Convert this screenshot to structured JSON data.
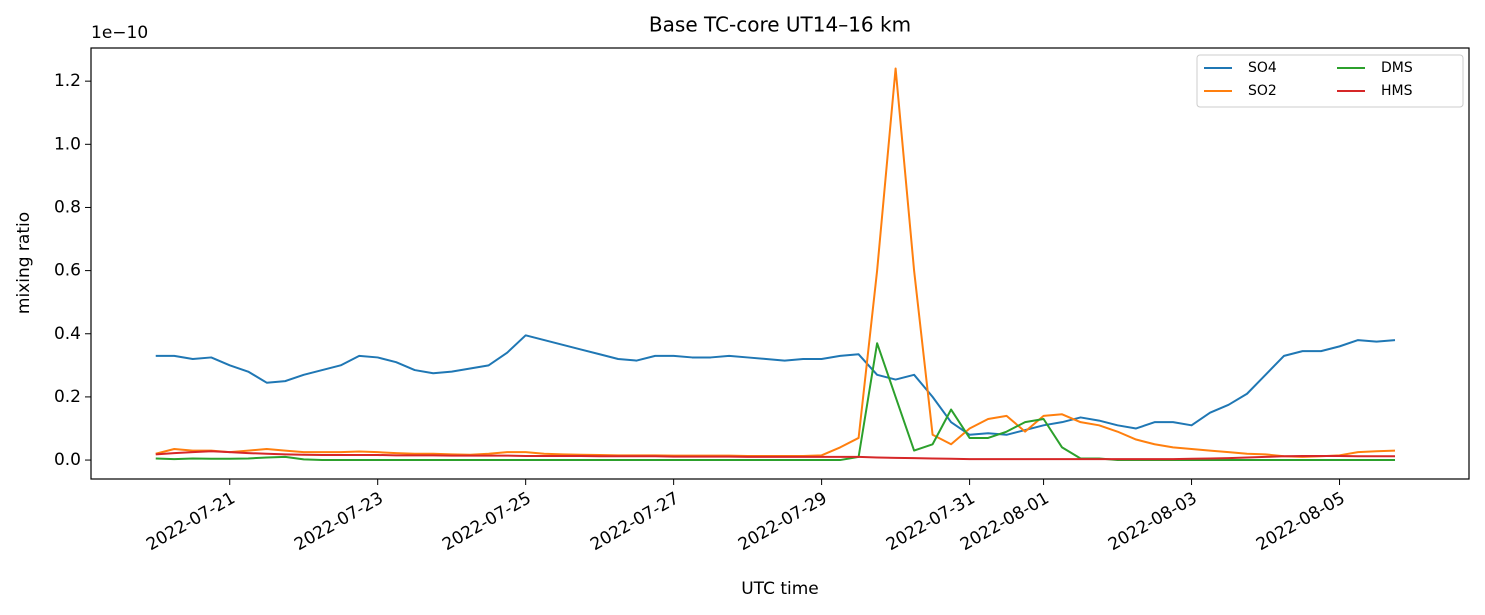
{
  "chart_data": {
    "type": "line",
    "title": "Base TC-core UT14–16 km",
    "y_offset_label": "1e−10",
    "xlabel": "UTC time",
    "ylabel": "mixing ratio",
    "x": [
      "2022-07-20 00:00",
      "2022-07-20 06:00",
      "2022-07-20 12:00",
      "2022-07-20 18:00",
      "2022-07-21 00:00",
      "2022-07-21 06:00",
      "2022-07-21 12:00",
      "2022-07-21 18:00",
      "2022-07-22 00:00",
      "2022-07-22 06:00",
      "2022-07-22 12:00",
      "2022-07-22 18:00",
      "2022-07-23 00:00",
      "2022-07-23 06:00",
      "2022-07-23 12:00",
      "2022-07-23 18:00",
      "2022-07-24 00:00",
      "2022-07-24 06:00",
      "2022-07-24 12:00",
      "2022-07-24 18:00",
      "2022-07-25 00:00",
      "2022-07-25 06:00",
      "2022-07-25 12:00",
      "2022-07-25 18:00",
      "2022-07-26 00:00",
      "2022-07-26 06:00",
      "2022-07-26 12:00",
      "2022-07-26 18:00",
      "2022-07-27 00:00",
      "2022-07-27 06:00",
      "2022-07-27 12:00",
      "2022-07-27 18:00",
      "2022-07-28 00:00",
      "2022-07-28 06:00",
      "2022-07-28 12:00",
      "2022-07-28 18:00",
      "2022-07-29 00:00",
      "2022-07-29 06:00",
      "2022-07-29 12:00",
      "2022-07-29 18:00",
      "2022-07-30 00:00",
      "2022-07-30 06:00",
      "2022-07-30 12:00",
      "2022-07-30 18:00",
      "2022-07-31 00:00",
      "2022-07-31 06:00",
      "2022-07-31 12:00",
      "2022-07-31 18:00",
      "2022-08-01 00:00",
      "2022-08-01 06:00",
      "2022-08-01 12:00",
      "2022-08-01 18:00",
      "2022-08-02 00:00",
      "2022-08-02 06:00",
      "2022-08-02 12:00",
      "2022-08-02 18:00",
      "2022-08-03 00:00",
      "2022-08-03 06:00",
      "2022-08-03 12:00",
      "2022-08-03 18:00",
      "2022-08-04 00:00",
      "2022-08-04 06:00",
      "2022-08-04 12:00",
      "2022-08-04 18:00",
      "2022-08-05 00:00",
      "2022-08-05 06:00",
      "2022-08-05 12:00",
      "2022-08-05 18:00"
    ],
    "series": [
      {
        "name": "SO4",
        "color": "#1f77b4",
        "values": [
          0.33,
          0.33,
          0.32,
          0.325,
          0.3,
          0.28,
          0.245,
          0.25,
          0.27,
          0.285,
          0.3,
          0.33,
          0.325,
          0.31,
          0.285,
          0.275,
          0.28,
          0.29,
          0.3,
          0.34,
          0.395,
          0.38,
          0.365,
          0.35,
          0.335,
          0.32,
          0.315,
          0.33,
          0.33,
          0.325,
          0.325,
          0.33,
          0.325,
          0.32,
          0.315,
          0.32,
          0.32,
          0.33,
          0.335,
          0.27,
          0.255,
          0.27,
          0.2,
          0.12,
          0.08,
          0.085,
          0.08,
          0.095,
          0.11,
          0.12,
          0.135,
          0.125,
          0.11,
          0.1,
          0.12,
          0.12,
          0.11,
          0.15,
          0.175,
          0.21,
          0.27,
          0.33,
          0.345,
          0.345,
          0.36,
          0.38,
          0.375,
          0.38
        ]
      },
      {
        "name": "SO2",
        "color": "#ff7f0e",
        "values": [
          0.02,
          0.035,
          0.03,
          0.03,
          0.025,
          0.03,
          0.035,
          0.03,
          0.025,
          0.025,
          0.025,
          0.027,
          0.025,
          0.022,
          0.02,
          0.02,
          0.018,
          0.017,
          0.02,
          0.025,
          0.025,
          0.02,
          0.018,
          0.017,
          0.016,
          0.015,
          0.015,
          0.015,
          0.014,
          0.014,
          0.014,
          0.014,
          0.013,
          0.013,
          0.013,
          0.013,
          0.015,
          0.04,
          0.07,
          0.6,
          1.24,
          0.6,
          0.08,
          0.05,
          0.1,
          0.13,
          0.14,
          0.09,
          0.14,
          0.145,
          0.12,
          0.11,
          0.09,
          0.065,
          0.05,
          0.04,
          0.035,
          0.03,
          0.025,
          0.02,
          0.018,
          0.012,
          0.01,
          0.012,
          0.015,
          0.025,
          0.028,
          0.03
        ]
      },
      {
        "name": "DMS",
        "color": "#2ca02c",
        "values": [
          0.005,
          0.003,
          0.005,
          0.004,
          0.004,
          0.005,
          0.008,
          0.01,
          0.002,
          0,
          0,
          0,
          0,
          0,
          0,
          0,
          0,
          0,
          0,
          0,
          0,
          0,
          0,
          0,
          0,
          0,
          0,
          0,
          0,
          0,
          0,
          0,
          0,
          0,
          0,
          0,
          0,
          0,
          0.01,
          0.37,
          0.2,
          0.03,
          0.05,
          0.16,
          0.07,
          0.07,
          0.09,
          0.12,
          0.13,
          0.04,
          0.005,
          0.005,
          0,
          0,
          0,
          0,
          0,
          0,
          0,
          0,
          0,
          0,
          0,
          0,
          0,
          0,
          0,
          0
        ]
      },
      {
        "name": "HMS",
        "color": "#d62728",
        "values": [
          0.018,
          0.022,
          0.025,
          0.028,
          0.025,
          0.022,
          0.02,
          0.018,
          0.017,
          0.016,
          0.016,
          0.016,
          0.016,
          0.015,
          0.015,
          0.015,
          0.014,
          0.014,
          0.014,
          0.014,
          0.013,
          0.013,
          0.013,
          0.013,
          0.012,
          0.012,
          0.012,
          0.012,
          0.011,
          0.011,
          0.011,
          0.011,
          0.01,
          0.01,
          0.01,
          0.01,
          0.01,
          0.01,
          0.01,
          0.008,
          0.007,
          0.006,
          0.005,
          0.004,
          0.003,
          0.003,
          0.003,
          0.003,
          0.003,
          0.003,
          0.003,
          0.003,
          0.003,
          0.003,
          0.003,
          0.003,
          0.004,
          0.005,
          0.006,
          0.008,
          0.01,
          0.012,
          0.013,
          0.013,
          0.013,
          0.012,
          0.012,
          0.012
        ]
      }
    ],
    "xlim": [
      "2022-07-19 03:00",
      "2022-08-06 18:00"
    ],
    "xticks": [
      "2022-07-21",
      "2022-07-23",
      "2022-07-25",
      "2022-07-27",
      "2022-07-29",
      "2022-07-31",
      "2022-08-01",
      "2022-08-03",
      "2022-08-05"
    ],
    "ylim": [
      -0.06,
      1.305
    ],
    "yticks": [
      {
        "value": 0,
        "label": "0.0"
      },
      0.2,
      0.4,
      0.6,
      0.8,
      {
        "value": 1,
        "label": "1.0"
      },
      1.2
    ],
    "grid": false,
    "legend": {
      "loc": "upper right",
      "ncol": 2
    }
  }
}
